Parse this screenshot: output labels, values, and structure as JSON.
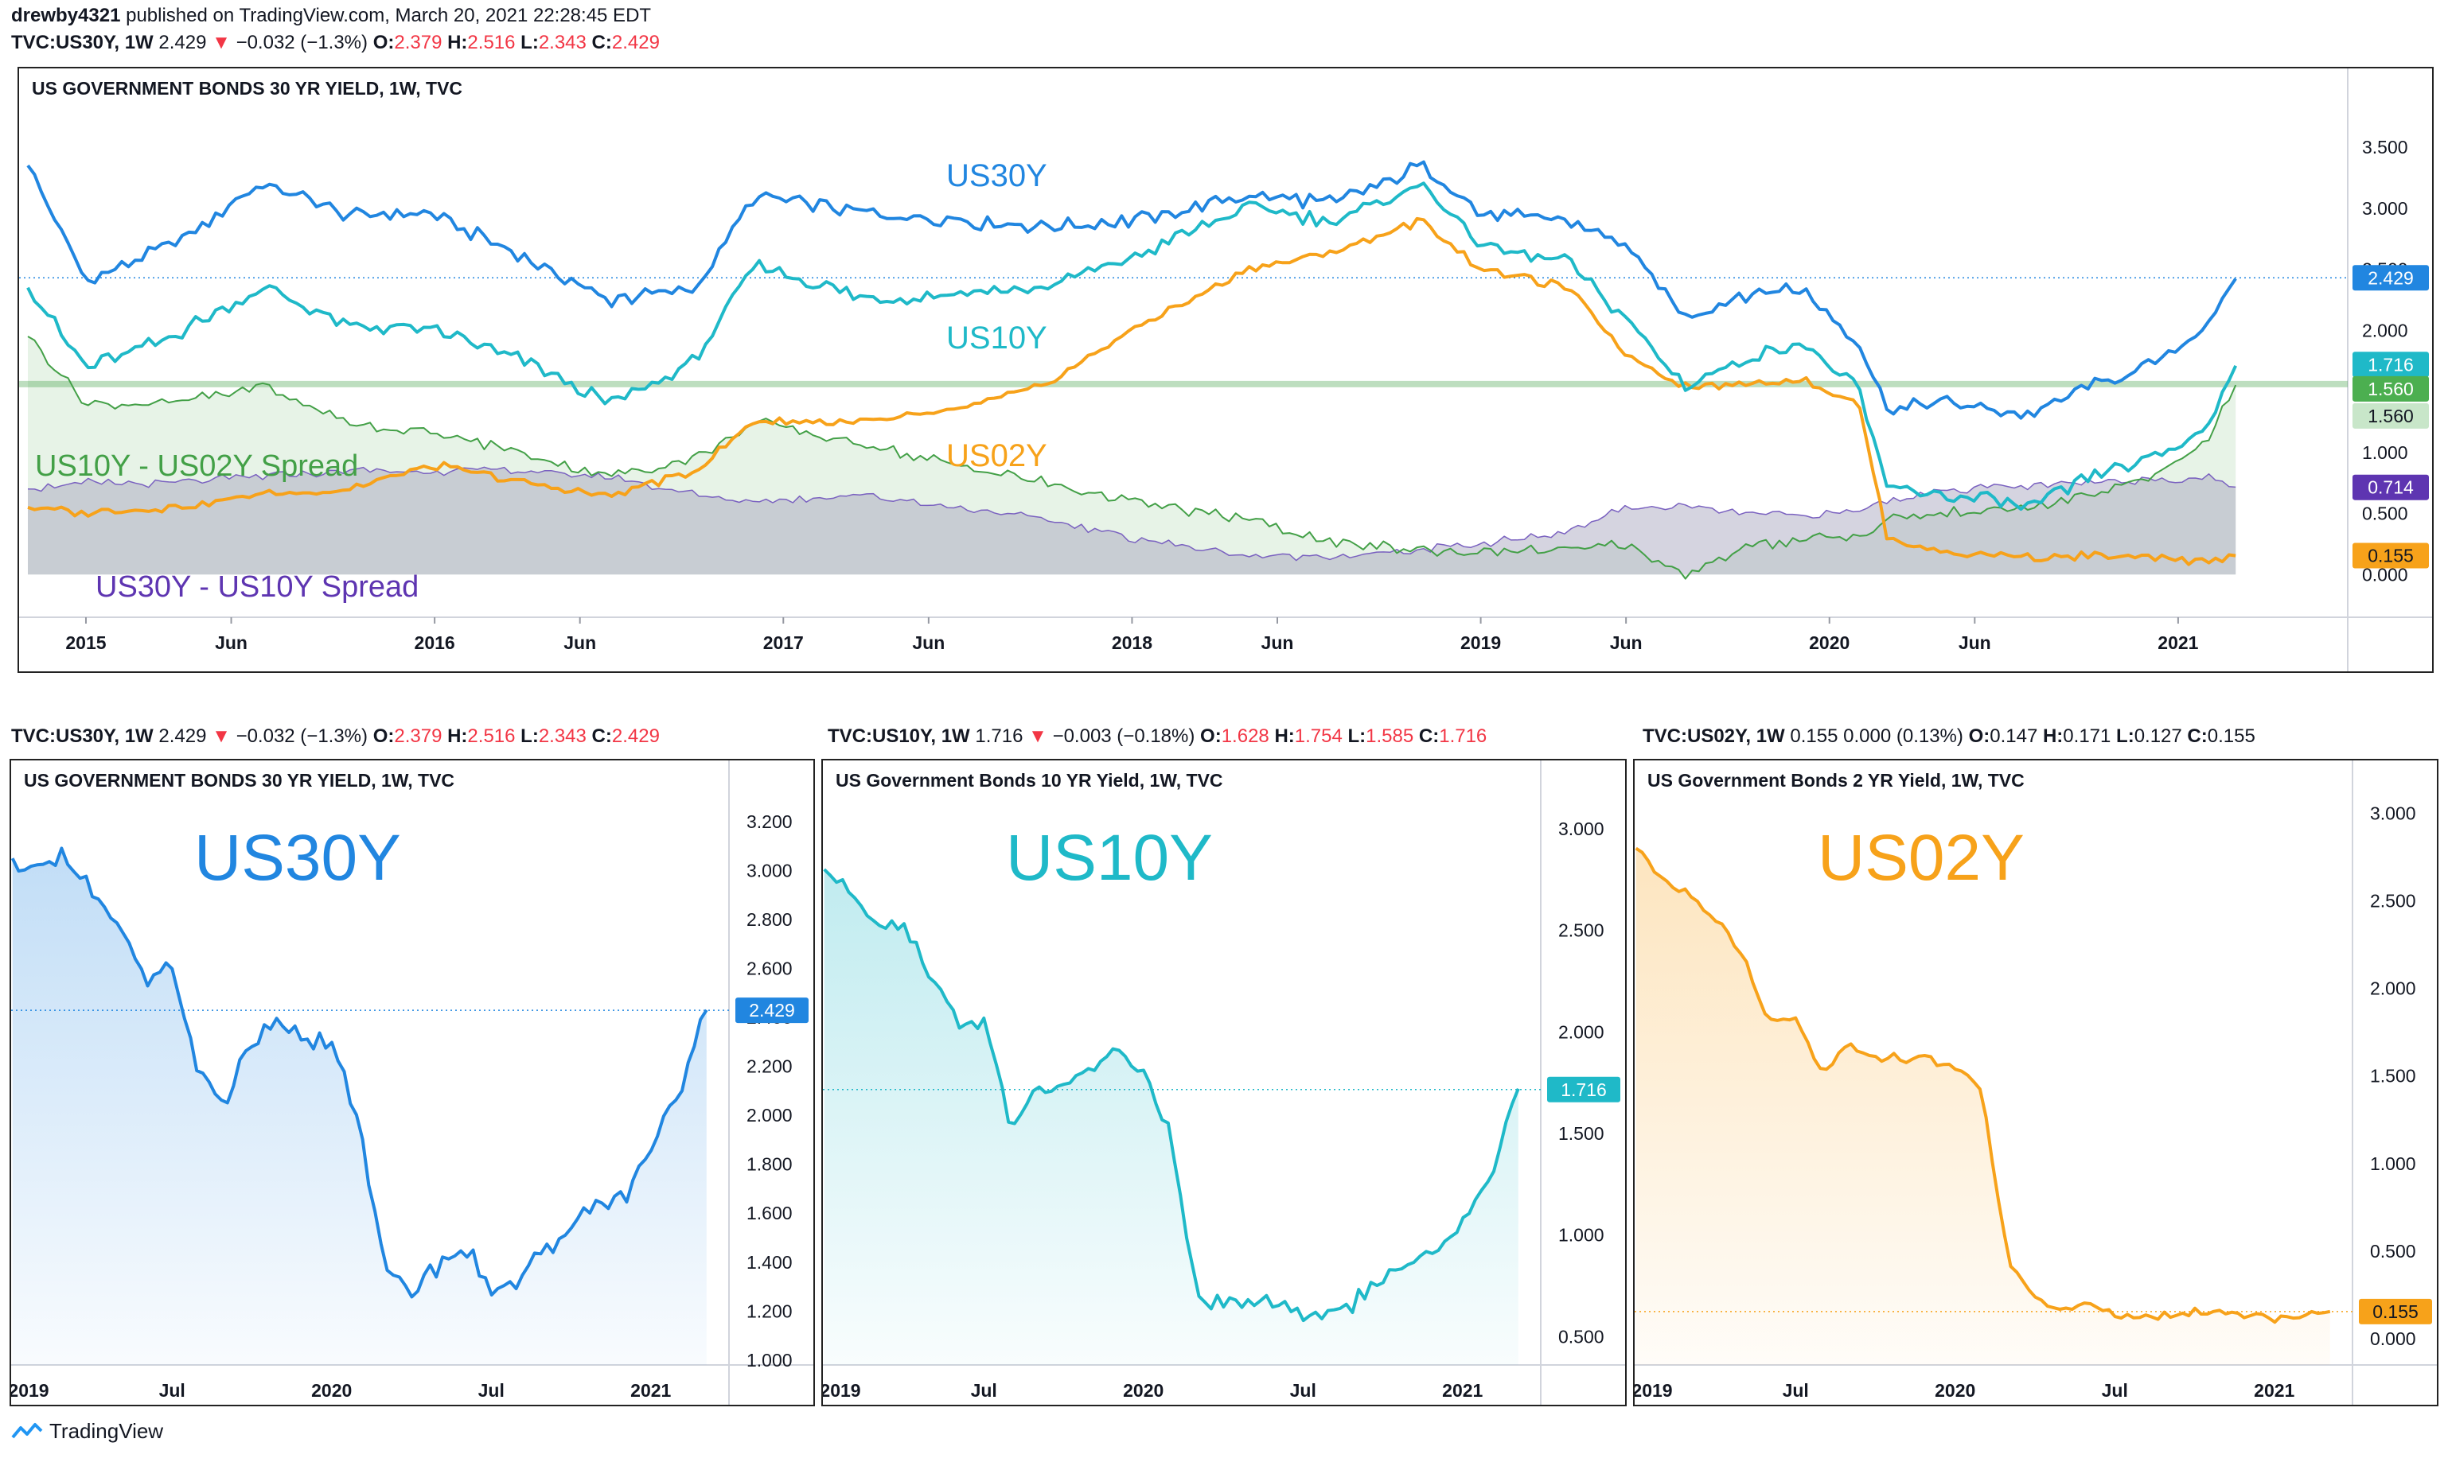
{
  "header": {
    "publisher": "drewby4321",
    "published_text": "published on TradingView.com, March 20, 2021 22:28:45 EDT",
    "symbol": "TVC:US30Y, 1W",
    "last": "2.429",
    "change": "−0.032 (−1.3%)",
    "o": "2.379",
    "h": "2.516",
    "l": "2.343",
    "c": "2.429"
  },
  "colors": {
    "us30y": "#2186e0",
    "us10y": "#1fb9c8",
    "us02y": "#f7a21a",
    "spread_10_02": "#43a047",
    "spread_30_10": "#7a61c0",
    "spread_label": "#5e35b1",
    "pane_border": "#222222"
  },
  "main_chart": {
    "title": "US GOVERNMENT BONDS 30 YR YIELD, 1W, TVC",
    "labels": {
      "us30y": "US30Y",
      "us10y": "US10Y",
      "us02y": "US02Y",
      "spread_10_02": "US10Y - US02Y Spread",
      "spread_30_10": "US30Y - US10Y Spread"
    },
    "price_tags": [
      "2.429",
      "1.716",
      "1.560",
      "1.560",
      "0.714",
      "0.155"
    ],
    "y_ticks": [
      "3.500",
      "3.000",
      "2.500",
      "2.000",
      "1.500",
      "1.000",
      "0.500",
      "0.000"
    ],
    "x_ticks": [
      "2015",
      "Jun",
      "2016",
      "Jun",
      "2017",
      "Jun",
      "2018",
      "Jun",
      "2019",
      "Jun",
      "2020",
      "Jun",
      "2021"
    ]
  },
  "chart_data": [
    {
      "type": "line",
      "title": "US GOVERNMENT BONDS 30 YR YIELD, 1W, TVC",
      "x_range": [
        "2014-11",
        "2021-03"
      ],
      "ylim": [
        -0.35,
        3.95
      ],
      "series": [
        {
          "name": "US30Y",
          "x": [
            "2014-11",
            "2015-01",
            "2015-04",
            "2015-07",
            "2015-10",
            "2016-01",
            "2016-04",
            "2016-07",
            "2016-10",
            "2016-12",
            "2017-04",
            "2017-07",
            "2017-10",
            "2018-01",
            "2018-05",
            "2018-08",
            "2018-11",
            "2019-01",
            "2019-04",
            "2019-06",
            "2019-08",
            "2019-10",
            "2019-12",
            "2020-02",
            "2020-03",
            "2020-05",
            "2020-08",
            "2020-10",
            "2020-12",
            "2021-02",
            "2021-03"
          ],
          "values": [
            3.35,
            2.4,
            2.7,
            3.2,
            2.95,
            2.95,
            2.6,
            2.25,
            2.35,
            3.1,
            2.95,
            2.9,
            2.85,
            2.9,
            3.1,
            3.05,
            3.35,
            2.95,
            2.9,
            2.7,
            2.1,
            2.3,
            2.35,
            1.9,
            1.35,
            1.4,
            1.3,
            1.55,
            1.7,
            2.05,
            2.43
          ]
        },
        {
          "name": "US10Y",
          "x": [
            "2014-11",
            "2015-01",
            "2015-04",
            "2015-07",
            "2015-10",
            "2016-01",
            "2016-04",
            "2016-07",
            "2016-10",
            "2016-12",
            "2017-04",
            "2017-07",
            "2017-10",
            "2018-01",
            "2018-05",
            "2018-08",
            "2018-11",
            "2019-01",
            "2019-04",
            "2019-06",
            "2019-08",
            "2019-10",
            "2019-12",
            "2020-02",
            "2020-03",
            "2020-05",
            "2020-08",
            "2020-10",
            "2020-12",
            "2021-02",
            "2021-03"
          ],
          "values": [
            2.35,
            1.7,
            1.95,
            2.35,
            2.05,
            2.0,
            1.75,
            1.4,
            1.75,
            2.55,
            2.25,
            2.3,
            2.35,
            2.6,
            3.0,
            2.9,
            3.2,
            2.7,
            2.55,
            2.1,
            1.55,
            1.75,
            1.9,
            1.5,
            0.7,
            0.65,
            0.55,
            0.8,
            0.92,
            1.2,
            1.72
          ]
        },
        {
          "name": "US02Y",
          "x": [
            "2014-11",
            "2015-01",
            "2015-04",
            "2015-07",
            "2015-10",
            "2016-01",
            "2016-04",
            "2016-07",
            "2016-10",
            "2016-12",
            "2017-04",
            "2017-07",
            "2017-10",
            "2018-01",
            "2018-05",
            "2018-08",
            "2018-11",
            "2019-01",
            "2019-04",
            "2019-06",
            "2019-08",
            "2019-10",
            "2019-12",
            "2020-02",
            "2020-03",
            "2020-05",
            "2020-08",
            "2020-10",
            "2020-12",
            "2021-02",
            "2021-03"
          ],
          "values": [
            0.55,
            0.5,
            0.55,
            0.65,
            0.7,
            0.9,
            0.75,
            0.65,
            0.85,
            1.25,
            1.25,
            1.35,
            1.55,
            2.0,
            2.5,
            2.65,
            2.9,
            2.5,
            2.35,
            1.8,
            1.55,
            1.55,
            1.6,
            1.4,
            0.3,
            0.18,
            0.14,
            0.15,
            0.13,
            0.11,
            0.155
          ]
        },
        {
          "name": "US10Y - US02Y Spread",
          "x": [
            "2014-11",
            "2015-01",
            "2015-04",
            "2015-07",
            "2015-10",
            "2016-01",
            "2016-04",
            "2016-07",
            "2016-10",
            "2016-12",
            "2017-04",
            "2017-07",
            "2017-10",
            "2018-01",
            "2018-05",
            "2018-08",
            "2018-11",
            "2019-01",
            "2019-04",
            "2019-06",
            "2019-08",
            "2019-10",
            "2019-12",
            "2020-02",
            "2020-03",
            "2020-05",
            "2020-08",
            "2020-10",
            "2020-12",
            "2021-02",
            "2021-03"
          ],
          "values": [
            1.95,
            1.4,
            1.4,
            1.55,
            1.25,
            1.15,
            1.0,
            0.8,
            0.95,
            1.25,
            1.05,
            0.9,
            0.75,
            0.6,
            0.45,
            0.25,
            0.2,
            0.2,
            0.2,
            0.25,
            0.0,
            0.2,
            0.3,
            0.3,
            0.45,
            0.5,
            0.55,
            0.65,
            0.78,
            1.1,
            1.56
          ]
        },
        {
          "name": "US30Y - US10Y Spread",
          "x": [
            "2014-11",
            "2015-01",
            "2015-04",
            "2015-07",
            "2015-10",
            "2016-01",
            "2016-04",
            "2016-07",
            "2016-10",
            "2016-12",
            "2017-04",
            "2017-07",
            "2017-10",
            "2018-01",
            "2018-05",
            "2018-08",
            "2018-11",
            "2019-01",
            "2019-04",
            "2019-06",
            "2019-08",
            "2019-10",
            "2019-12",
            "2020-02",
            "2020-03",
            "2020-05",
            "2020-08",
            "2020-10",
            "2020-12",
            "2021-02",
            "2021-03"
          ],
          "values": [
            0.7,
            0.75,
            0.75,
            0.8,
            0.85,
            0.85,
            0.85,
            0.8,
            0.65,
            0.6,
            0.65,
            0.55,
            0.45,
            0.3,
            0.15,
            0.15,
            0.2,
            0.25,
            0.35,
            0.55,
            0.55,
            0.5,
            0.48,
            0.52,
            0.6,
            0.7,
            0.72,
            0.75,
            0.78,
            0.8,
            0.714
          ]
        }
      ],
      "reference_line": {
        "value": 1.56,
        "label": "1.560"
      },
      "grid": false
    },
    {
      "type": "area",
      "title": "US GOVERNMENT BONDS 30 YR YIELD, 1W, TVC",
      "x_range": [
        "2019-01",
        "2021-03"
      ],
      "ylim": [
        0.98,
        3.32
      ],
      "series": [
        {
          "name": "US30Y",
          "x": [
            "2019-01",
            "2019-02",
            "2019-03",
            "2019-04",
            "2019-05",
            "2019-06",
            "2019-07",
            "2019-08",
            "2019-09",
            "2019-10",
            "2019-11",
            "2019-12",
            "2020-01",
            "2020-02",
            "2020-03",
            "2020-04",
            "2020-05",
            "2020-06",
            "2020-07",
            "2020-08",
            "2020-09",
            "2020-10",
            "2020-11",
            "2020-12",
            "2021-01",
            "2021-02",
            "2021-03"
          ],
          "values": [
            3.05,
            3.0,
            3.05,
            2.9,
            2.75,
            2.58,
            2.6,
            2.15,
            2.05,
            2.3,
            2.35,
            2.3,
            2.3,
            2.0,
            1.35,
            1.28,
            1.4,
            1.45,
            1.3,
            1.3,
            1.45,
            1.55,
            1.65,
            1.65,
            1.85,
            2.05,
            2.43
          ]
        }
      ],
      "last_value": "2.429"
    },
    {
      "type": "area",
      "title": "US Government Bonds 10 YR Yield, 1W, TVC",
      "x_range": [
        "2019-01",
        "2021-03"
      ],
      "ylim": [
        0.36,
        3.18
      ],
      "series": [
        {
          "name": "US10Y",
          "x": [
            "2019-01",
            "2019-02",
            "2019-03",
            "2019-04",
            "2019-05",
            "2019-06",
            "2019-07",
            "2019-08",
            "2019-09",
            "2019-10",
            "2019-11",
            "2019-12",
            "2020-01",
            "2020-02",
            "2020-03",
            "2020-04",
            "2020-05",
            "2020-06",
            "2020-07",
            "2020-08",
            "2020-09",
            "2020-10",
            "2020-11",
            "2020-12",
            "2021-01",
            "2021-02",
            "2021-03"
          ],
          "values": [
            2.8,
            2.68,
            2.55,
            2.52,
            2.3,
            2.05,
            2.05,
            1.55,
            1.7,
            1.75,
            1.8,
            1.9,
            1.8,
            1.5,
            0.7,
            0.65,
            0.66,
            0.7,
            0.58,
            0.62,
            0.68,
            0.78,
            0.85,
            0.92,
            1.08,
            1.25,
            1.72
          ]
        }
      ],
      "last_value": "1.716"
    },
    {
      "type": "area",
      "title": "US Government Bonds 2 YR Yield, 1W, TVC",
      "x_range": [
        "2019-01",
        "2021-03"
      ],
      "ylim": [
        -0.15,
        3.12
      ],
      "series": [
        {
          "name": "US02Y",
          "x": [
            "2019-01",
            "2019-02",
            "2019-03",
            "2019-04",
            "2019-05",
            "2019-06",
            "2019-07",
            "2019-08",
            "2019-09",
            "2019-10",
            "2019-11",
            "2019-12",
            "2020-01",
            "2020-02",
            "2020-03",
            "2020-04",
            "2020-05",
            "2020-06",
            "2020-07",
            "2020-08",
            "2020-09",
            "2020-10",
            "2020-11",
            "2020-12",
            "2021-01",
            "2021-02",
            "2021-03"
          ],
          "values": [
            2.8,
            2.62,
            2.55,
            2.4,
            2.2,
            1.8,
            1.85,
            1.5,
            1.7,
            1.6,
            1.6,
            1.6,
            1.55,
            1.4,
            0.45,
            0.22,
            0.17,
            0.18,
            0.15,
            0.14,
            0.13,
            0.15,
            0.16,
            0.13,
            0.12,
            0.11,
            0.155
          ]
        }
      ],
      "last_value": "0.155"
    }
  ],
  "sub_charts": [
    {
      "info_symbol": "TVC:US30Y, 1W",
      "info_last": "2.429",
      "info_change": "−0.032 (−1.3%)",
      "info_o": "2.379",
      "info_h": "2.516",
      "info_l": "2.343",
      "info_c": "2.429",
      "title": "US GOVERNMENT BONDS 30 YR YIELD, 1W, TVC",
      "big_label": "US30Y",
      "tag": "2.429",
      "y_ticks": [
        "3.200",
        "3.000",
        "2.800",
        "2.600",
        "2.400",
        "2.200",
        "2.000",
        "1.800",
        "1.600",
        "1.400",
        "1.200",
        "1.000"
      ],
      "x_ticks": [
        "2019",
        "Jul",
        "2020",
        "Jul",
        "2021"
      ]
    },
    {
      "info_symbol": "TVC:US10Y, 1W",
      "info_last": "1.716",
      "info_change": "−0.003 (−0.18%)",
      "info_o": "1.628",
      "info_h": "1.754",
      "info_l": "1.585",
      "info_c": "1.716",
      "title": "US Government Bonds 10 YR Yield, 1W, TVC",
      "big_label": "US10Y",
      "tag": "1.716",
      "y_ticks": [
        "3.000",
        "2.500",
        "2.000",
        "1.500",
        "1.000",
        "0.500"
      ],
      "x_ticks": [
        "2019",
        "Jul",
        "2020",
        "Jul",
        "2021"
      ]
    },
    {
      "info_symbol": "TVC:US02Y, 1W",
      "info_last": "0.155",
      "info_change": "0.000 (0.13%)",
      "info_o": "0.147",
      "info_h": "0.171",
      "info_l": "0.127",
      "info_c": "0.155",
      "title": "US Government Bonds 2 YR Yield, 1W, TVC",
      "big_label": "US02Y",
      "tag": "0.155",
      "y_ticks": [
        "3.000",
        "2.500",
        "2.000",
        "1.500",
        "1.000",
        "0.500",
        "0.000"
      ],
      "x_ticks": [
        "2019",
        "Jul",
        "2020",
        "Jul",
        "2021"
      ]
    }
  ],
  "footer": {
    "brand": "TradingView",
    "logo_icon": "tradingview-logo-icon"
  }
}
